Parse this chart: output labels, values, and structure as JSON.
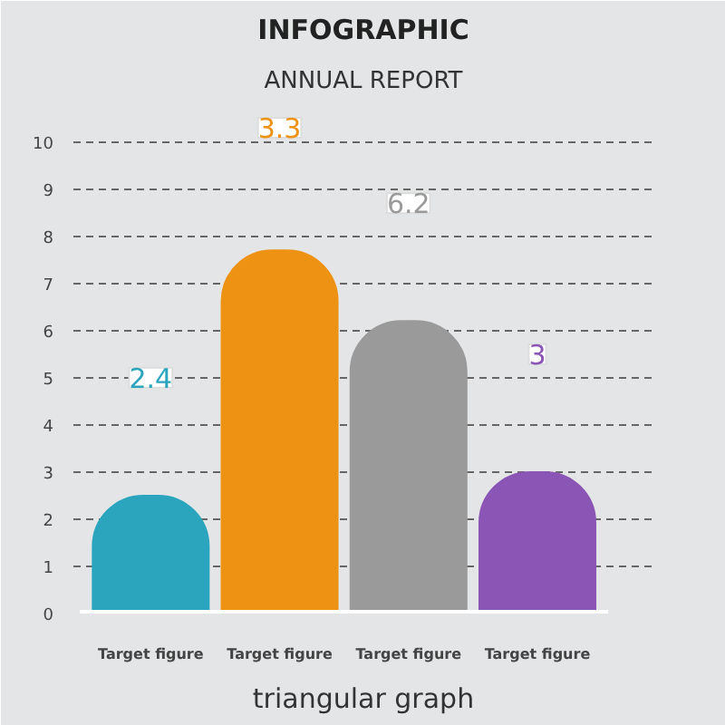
{
  "chart_data": {
    "type": "bar",
    "title": "INFOGRAPHIC",
    "subtitle": "ANNUAL REPORT",
    "annotations": [
      {
        "text": "2.4",
        "y": 5.0
      },
      {
        "text": "3.3",
        "y": 10.3
      },
      {
        "text": "6.2",
        "y": 8.7
      },
      {
        "text": "3",
        "y": 5.5
      },
      "triangular graph"
    ],
    "categories": [
      "Target figure",
      "Target figure",
      "Target figure",
      "Target figure"
    ],
    "values": [
      2.5,
      7.7,
      6.2,
      3.0
    ],
    "colors": [
      "#2aa5bd",
      "#ee9214",
      "#9a9a9a",
      "#8a55b4"
    ],
    "ylim": [
      0,
      10.8
    ],
    "yticks": [
      0,
      1,
      2,
      3,
      4,
      5,
      6,
      7,
      8,
      9,
      10
    ],
    "grid": "y",
    "line_style": "dashed"
  }
}
